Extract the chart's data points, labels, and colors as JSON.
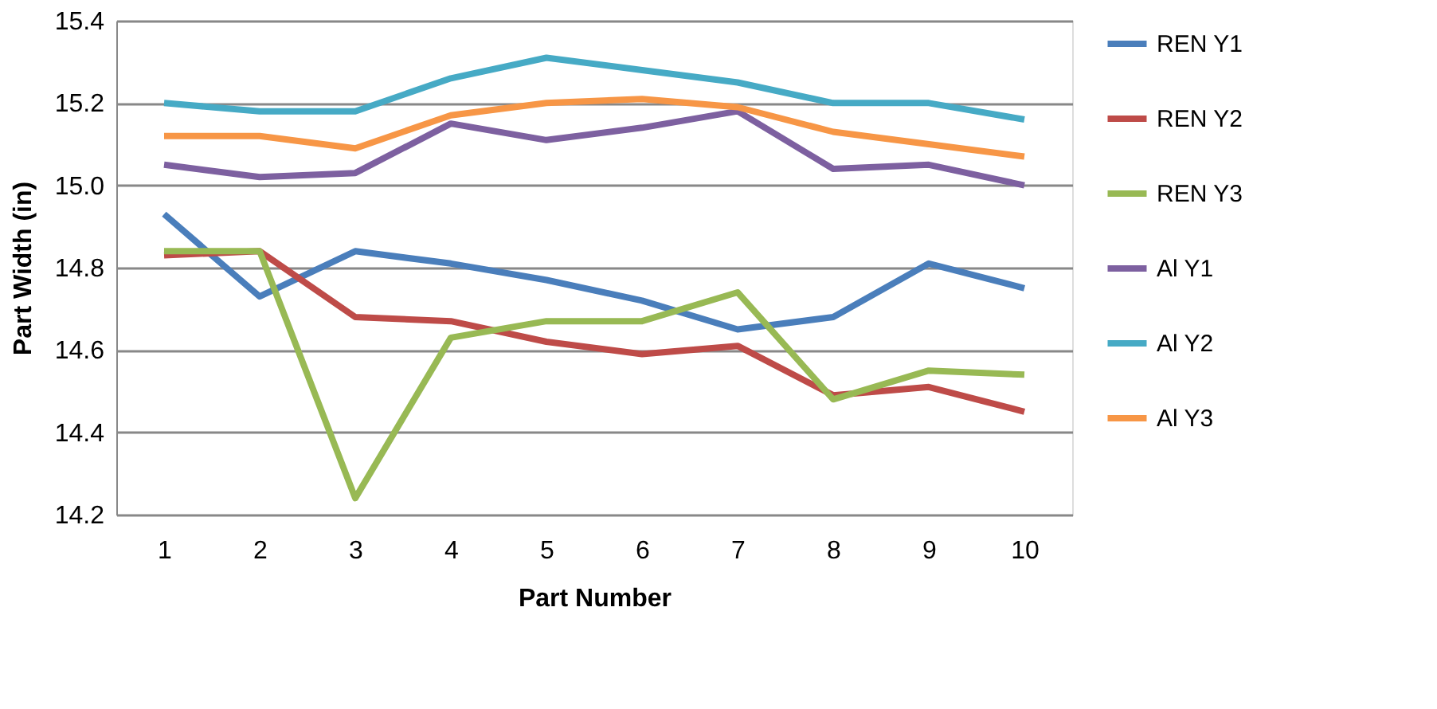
{
  "chart_data": {
    "type": "line",
    "xlabel": "Part Number",
    "ylabel": "Part Width (in)",
    "categories": [
      "1",
      "2",
      "3",
      "4",
      "5",
      "6",
      "7",
      "8",
      "9",
      "10"
    ],
    "series": [
      {
        "name": "REN Y1",
        "color": "#4a7ebb",
        "values": [
          14.93,
          14.73,
          14.84,
          14.81,
          14.77,
          14.72,
          14.65,
          14.68,
          14.81,
          14.75
        ]
      },
      {
        "name": "REN Y2",
        "color": "#be4b48",
        "values": [
          14.83,
          14.84,
          14.68,
          14.67,
          14.62,
          14.59,
          14.61,
          14.49,
          14.51,
          14.45
        ]
      },
      {
        "name": "REN Y3",
        "color": "#98b954",
        "values": [
          14.84,
          14.84,
          14.24,
          14.63,
          14.67,
          14.67,
          14.74,
          14.48,
          14.55,
          14.54
        ]
      },
      {
        "name": "Al Y1",
        "color": "#7d60a0",
        "values": [
          15.05,
          15.02,
          15.03,
          15.15,
          15.11,
          15.14,
          15.18,
          15.04,
          15.05,
          15.0
        ]
      },
      {
        "name": "Al Y2",
        "color": "#46aac5",
        "values": [
          15.2,
          15.18,
          15.18,
          15.26,
          15.31,
          15.28,
          15.25,
          15.2,
          15.2,
          15.16
        ]
      },
      {
        "name": "Al Y3",
        "color": "#f79646",
        "values": [
          15.12,
          15.12,
          15.09,
          15.17,
          15.2,
          15.21,
          15.19,
          15.13,
          15.1,
          15.07
        ]
      }
    ],
    "ylim": [
      14.2,
      15.4
    ],
    "yticks": [
      14.2,
      14.4,
      14.6,
      14.8,
      {
        "value": 15,
        "label": "15.0"
      },
      15.2,
      15.4
    ],
    "grid": "y",
    "legend": "right",
    "marker": "none",
    "line_style": "solid"
  }
}
